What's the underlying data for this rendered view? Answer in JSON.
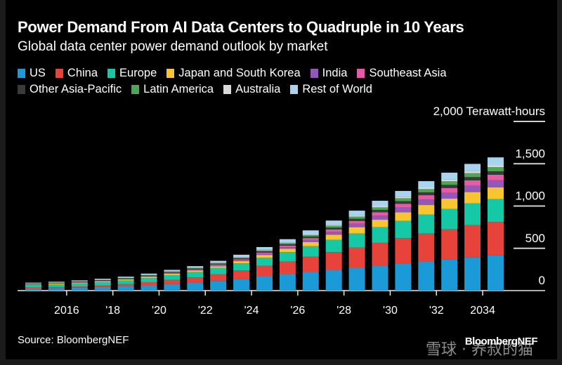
{
  "header": {
    "title": "Power Demand From AI Data Centers to Quadruple in 10 Years",
    "subtitle": "Global data center power demand outlook by market"
  },
  "footer": {
    "source": "Source: BloombergNEF",
    "brand": "BloombergNEF",
    "watermark": "雪球 · 养叔的猫"
  },
  "chart_data": {
    "type": "bar",
    "stacked": true,
    "title": "Power Demand From AI Data Centers to Quadruple in 10 Years",
    "subtitle": "Global data center power demand outlook by market",
    "xlabel": "",
    "ylabel": "Terawatt-hours",
    "ylim": [
      0,
      2000
    ],
    "yticks": [
      0,
      500,
      1000,
      1500,
      2000
    ],
    "ytick_labels": [
      "0",
      "500",
      "1,000",
      "1,500",
      "2,000 Terawatt-hours"
    ],
    "grid": true,
    "legend_position": "top-left",
    "categories": [
      "2015",
      "2016",
      "2017",
      "2018",
      "2019",
      "2020",
      "2021",
      "2022",
      "2023",
      "2024",
      "2025",
      "2026",
      "2027",
      "2028",
      "2029",
      "2030",
      "2031",
      "2032",
      "2033",
      "2034",
      "2035"
    ],
    "xtick_labels": [
      {
        "year": "2016",
        "label": "2016"
      },
      {
        "year": "2018",
        "label": "'18"
      },
      {
        "year": "2020",
        "label": "'20"
      },
      {
        "year": "2022",
        "label": "'22"
      },
      {
        "year": "2024",
        "label": "'24"
      },
      {
        "year": "2026",
        "label": "'26"
      },
      {
        "year": "2028",
        "label": "'28"
      },
      {
        "year": "2030",
        "label": "'30"
      },
      {
        "year": "2032",
        "label": "'32"
      },
      {
        "year": "2034",
        "label": "2034"
      }
    ],
    "series": [
      {
        "name": "US",
        "color": "#1a9ad6",
        "values": [
          25,
          30,
          35,
          42,
          50,
          62,
          78,
          95,
          115,
          140,
          170,
          195,
          220,
          245,
          270,
          295,
          320,
          345,
          370,
          395,
          418
        ]
      },
      {
        "name": "China",
        "color": "#e8433a",
        "values": [
          10,
          12,
          15,
          20,
          28,
          38,
          50,
          62,
          80,
          100,
          125,
          150,
          180,
          210,
          240,
          270,
          300,
          330,
          355,
          380,
          394
        ]
      },
      {
        "name": "Europe",
        "color": "#16c9a6",
        "values": [
          30,
          32,
          35,
          38,
          42,
          48,
          55,
          62,
          72,
          82,
          95,
          110,
          125,
          145,
          165,
          185,
          205,
          225,
          240,
          258,
          270
        ]
      },
      {
        "name": "Japan and South Korea",
        "color": "#f7c530",
        "values": [
          8,
          9,
          10,
          11,
          12,
          14,
          16,
          18,
          22,
          26,
          32,
          40,
          50,
          62,
          75,
          88,
          100,
          112,
          122,
          132,
          140
        ]
      },
      {
        "name": "India",
        "color": "#9259b8",
        "values": [
          2,
          2,
          3,
          3,
          4,
          5,
          6,
          7,
          9,
          11,
          14,
          18,
          24,
          32,
          40,
          48,
          56,
          64,
          70,
          76,
          82
        ]
      },
      {
        "name": "Southeast Asia",
        "color": "#e55ba8",
        "values": [
          2,
          2,
          3,
          3,
          4,
          5,
          6,
          7,
          9,
          11,
          14,
          18,
          22,
          28,
          34,
          40,
          46,
          52,
          57,
          62,
          66
        ]
      },
      {
        "name": "Other Asia-Pacific",
        "color": "#3a3a3a",
        "values": [
          4,
          4,
          5,
          5,
          6,
          7,
          8,
          9,
          10,
          12,
          14,
          16,
          19,
          22,
          25,
          28,
          31,
          34,
          36,
          39,
          41
        ]
      },
      {
        "name": "Latin America",
        "color": "#4aa84e",
        "values": [
          3,
          3,
          3,
          4,
          4,
          5,
          6,
          7,
          8,
          10,
          12,
          15,
          18,
          22,
          26,
          30,
          34,
          38,
          42,
          46,
          49
        ]
      },
      {
        "name": "Australia",
        "color": "#d9d9d9",
        "values": [
          2,
          2,
          2,
          3,
          3,
          3,
          4,
          4,
          5,
          6,
          7,
          8,
          10,
          12,
          14,
          16,
          18,
          20,
          22,
          24,
          25
        ]
      },
      {
        "name": "Rest of World",
        "color": "#a9d4ef",
        "values": [
          8,
          9,
          10,
          11,
          12,
          14,
          16,
          18,
          22,
          26,
          32,
          38,
          44,
          50,
          56,
          62,
          68,
          74,
          80,
          86,
          90
        ]
      }
    ]
  }
}
